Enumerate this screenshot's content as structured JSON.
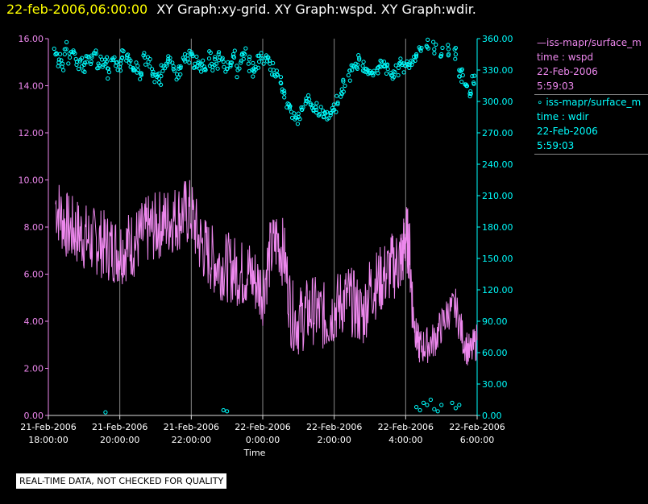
{
  "header": {
    "timestamp": "22-feb-2006,06:00:00",
    "graphs": "XY Graph:xy-grid.  XY Graph:wspd.  XY Graph:wdir."
  },
  "legend": {
    "series1": {
      "name": "iss-mapr/surface_m",
      "label": "time : wspd",
      "date": "22-Feb-2006",
      "time": "5:59:03"
    },
    "series2": {
      "name": "iss-mapr/surface_m",
      "label": "time : wdir",
      "date": "22-Feb-2006",
      "time": "5:59:03"
    }
  },
  "disclaimer": "REAL-TIME DATA, NOT CHECKED FOR QUALITY",
  "colors": {
    "wspd": "#ee88ee",
    "wdir": "#00ffff",
    "axis": "#dddddd",
    "grid": "#888888",
    "title": "#ffff00"
  },
  "chart_data": {
    "type": "line+scatter",
    "xlabel": "Time",
    "xlim_hours": [
      -6.0,
      6.0
    ],
    "x_ticks": [
      {
        "hour": -6,
        "line1": "21-Feb-2006",
        "line2": "18:00:00"
      },
      {
        "hour": -4,
        "line1": "21-Feb-2006",
        "line2": "20:00:00"
      },
      {
        "hour": -2,
        "line1": "21-Feb-2006",
        "line2": "22:00:00"
      },
      {
        "hour": 0,
        "line1": "22-Feb-2006",
        "line2": "0:00:00"
      },
      {
        "hour": 2,
        "line1": "22-Feb-2006",
        "line2": "2:00:00"
      },
      {
        "hour": 4,
        "line1": "22-Feb-2006",
        "line2": "4:00:00"
      },
      {
        "hour": 6,
        "line1": "22-Feb-2006",
        "line2": "6:00:00"
      }
    ],
    "left_axis": {
      "series": "wspd",
      "ylim": [
        0,
        16
      ],
      "ticks": [
        "0.00",
        "2.00",
        "4.00",
        "6.00",
        "8.00",
        "10.00",
        "12.00",
        "14.00",
        "16.00"
      ]
    },
    "right_axis": {
      "series": "wdir",
      "ylim": [
        0,
        360
      ],
      "ticks": [
        "0.00",
        "30.00",
        "60.00",
        "90.00",
        "120.00",
        "150.00",
        "180.00",
        "210.00",
        "240.00",
        "270.00",
        "300.00",
        "330.00",
        "360.00"
      ]
    },
    "wspd": {
      "hours": [
        -5.8,
        -5.6,
        -5.4,
        -5.2,
        -5.0,
        -4.8,
        -4.6,
        -4.4,
        -4.2,
        -4.0,
        -3.8,
        -3.6,
        -3.4,
        -3.2,
        -3.0,
        -2.8,
        -2.6,
        -2.4,
        -2.2,
        -2.0,
        -1.8,
        -1.6,
        -1.4,
        -1.2,
        -1.0,
        -0.8,
        -0.6,
        -0.4,
        -0.2,
        0.0,
        0.2,
        0.4,
        0.6,
        0.8,
        1.0,
        1.2,
        1.4,
        1.6,
        1.8,
        2.0,
        2.2,
        2.4,
        2.6,
        2.8,
        3.0,
        3.2,
        3.4,
        3.6,
        3.8,
        3.9,
        4.0,
        4.1,
        4.2,
        4.3,
        4.4,
        4.6,
        4.8,
        5.0,
        5.2,
        5.4,
        5.6,
        5.8,
        6.0
      ],
      "values": [
        9.0,
        8.3,
        7.9,
        7.8,
        7.6,
        7.4,
        7.4,
        7.2,
        7.1,
        7.0,
        7.2,
        7.3,
        7.6,
        7.9,
        8.0,
        8.2,
        8.3,
        8.4,
        8.6,
        8.6,
        7.5,
        7.0,
        6.6,
        6.4,
        6.3,
        6.2,
        6.0,
        6.1,
        5.7,
        5.3,
        6.8,
        7.5,
        6.8,
        4.3,
        4.0,
        4.3,
        4.5,
        4.3,
        4.1,
        4.5,
        4.8,
        5.0,
        4.6,
        4.2,
        5.4,
        5.6,
        5.9,
        6.3,
        6.5,
        6.7,
        7.6,
        7.2,
        4.5,
        3.3,
        2.9,
        3.0,
        3.2,
        3.8,
        4.4,
        4.6,
        3.3,
        2.6,
        3.2
      ]
    },
    "wdir": {
      "hours": [
        -5.8,
        -5.7,
        -5.6,
        -5.5,
        -5.4,
        -5.3,
        -5.2,
        -5.1,
        -5.0,
        -4.9,
        -4.8,
        -4.7,
        -4.6,
        -4.5,
        -4.4,
        -4.3,
        -4.2,
        -4.1,
        -4.0,
        -3.9,
        -3.8,
        -3.7,
        -3.6,
        -3.5,
        -3.4,
        -3.3,
        -3.2,
        -3.1,
        -3.0,
        -2.9,
        -2.8,
        -2.7,
        -2.6,
        -2.5,
        -2.4,
        -2.3,
        -2.2,
        -2.1,
        -2.0,
        -1.9,
        -1.8,
        -1.7,
        -1.6,
        -1.5,
        -1.4,
        -1.3,
        -1.2,
        -1.1,
        -1.0,
        -0.9,
        -0.8,
        -0.7,
        -0.6,
        -0.5,
        -0.4,
        -0.3,
        -0.2,
        -0.1,
        0.0,
        0.1,
        0.2,
        0.3,
        0.4,
        0.5,
        0.6,
        0.7,
        0.8,
        0.9,
        1.0,
        1.1,
        1.2,
        1.3,
        1.4,
        1.5,
        1.6,
        1.7,
        1.8,
        1.9,
        2.0,
        2.1,
        2.2,
        2.3,
        2.4,
        2.5,
        2.6,
        2.7,
        2.8,
        2.9,
        3.0,
        3.1,
        3.2,
        3.3,
        3.4,
        3.5,
        3.6,
        3.7,
        3.8,
        3.9,
        4.0,
        4.1,
        4.2,
        4.3,
        4.4,
        4.6,
        4.8,
        5.0,
        5.2,
        5.4,
        5.5,
        5.6,
        5.7,
        5.8,
        5.9,
        -4.4,
        -1.1,
        -1.0,
        4.3,
        4.4,
        4.5,
        4.6,
        4.7,
        4.8,
        4.9,
        5.0,
        5.3,
        5.4,
        5.5
      ],
      "values": [
        345,
        340,
        336,
        350,
        342,
        347,
        338,
        340,
        335,
        343,
        338,
        346,
        332,
        340,
        336,
        328,
        341,
        337,
        333,
        348,
        344,
        339,
        330,
        334,
        327,
        342,
        338,
        331,
        325,
        322,
        329,
        336,
        338,
        331,
        326,
        332,
        340,
        344,
        347,
        336,
        338,
        335,
        330,
        341,
        333,
        336,
        342,
        338,
        331,
        335,
        342,
        330,
        339,
        345,
        336,
        330,
        333,
        338,
        341,
        344,
        336,
        330,
        326,
        318,
        310,
        298,
        290,
        283,
        285,
        292,
        298,
        302,
        296,
        292,
        288,
        285,
        283,
        287,
        292,
        299,
        308,
        315,
        325,
        330,
        336,
        340,
        334,
        331,
        329,
        327,
        330,
        333,
        334,
        331,
        325,
        328,
        332,
        335,
        334,
        332,
        338,
        345,
        350,
        352,
        350,
        345,
        350,
        345,
        330,
        325,
        315,
        305,
        318,
        3,
        5,
        4,
        8,
        5,
        12,
        10,
        15,
        6,
        4,
        10,
        12,
        7,
        10
      ]
    }
  }
}
